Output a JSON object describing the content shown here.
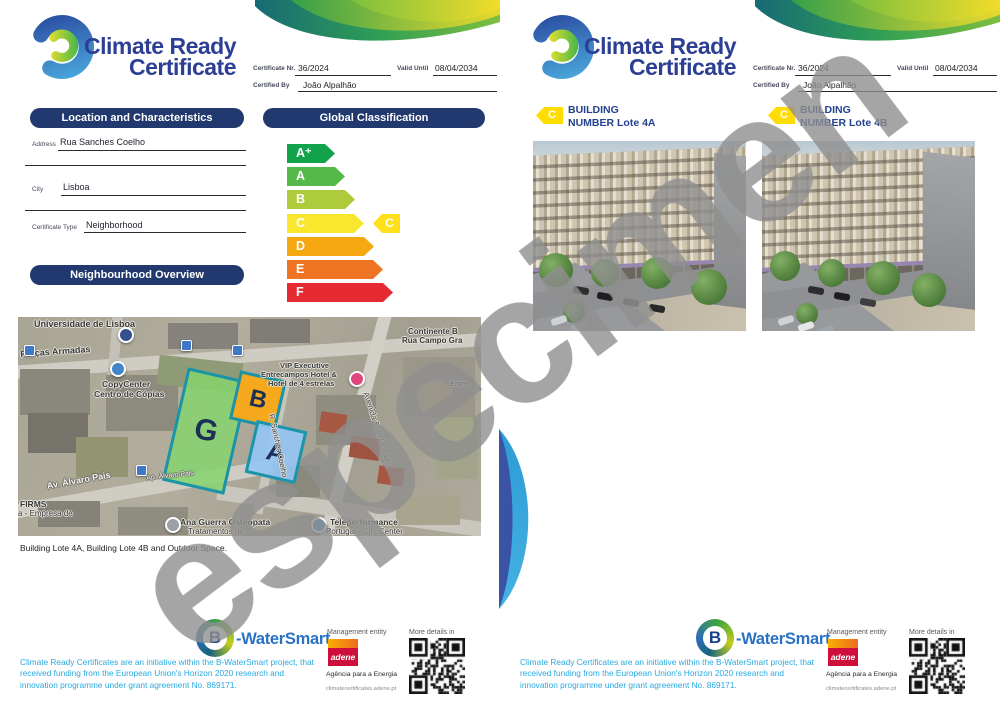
{
  "watermark": "especimen",
  "logo": {
    "title_line1": "Climate Ready",
    "title_line2": "Certificate"
  },
  "header": {
    "certificate_nr_label": "Certificate Nr.",
    "certificate_nr": "36/2024",
    "valid_until_label": "Valid Until",
    "valid_until": "08/04/2034",
    "certified_by_label": "Certified By",
    "certified_by": "João Alpalhão"
  },
  "left_page": {
    "location_section_title": "Location and Characteristics",
    "classification_section_title": "Global Classification",
    "overview_section_title": "Neighbourhood Overview",
    "fields": {
      "address_label": "Address",
      "address": "Rua Sanches Coelho",
      "city_label": "City",
      "city": "Lisboa",
      "certificate_type_label": "Certificate Type",
      "certificate_type": "Neighborhood"
    },
    "map_caption": "Building Lote 4A, Building Lote 4B and Outdoor Space."
  },
  "energy_scale": {
    "bands": [
      {
        "letter": "A⁺",
        "color": "#12a24b"
      },
      {
        "letter": "A",
        "color": "#54b948"
      },
      {
        "letter": "B",
        "color": "#aecb3b"
      },
      {
        "letter": "C",
        "color": "#f9e72e"
      },
      {
        "letter": "D",
        "color": "#f6a810"
      },
      {
        "letter": "E",
        "color": "#ee7423"
      },
      {
        "letter": "F",
        "color": "#e62a32"
      }
    ],
    "rating": {
      "letter": "C",
      "color": "#ffe01a",
      "row": 3
    }
  },
  "map": {
    "zones": [
      {
        "letter": "G",
        "fill": "rgba(134,211,110,0.85)"
      },
      {
        "letter": "B",
        "fill": "#f6a91d"
      },
      {
        "letter": "A",
        "fill": "rgba(147,197,245,0.9)"
      }
    ],
    "labels": [
      {
        "text": "Universidade de Lisboa"
      },
      {
        "text": "Forças Armadas"
      },
      {
        "text": "CopyCenter"
      },
      {
        "text": "Centro de Cópias"
      },
      {
        "text": "VIP Executive"
      },
      {
        "text": "Entrecampos Hotel &"
      },
      {
        "text": "Hotel de 4 estrelas"
      },
      {
        "text": "Continente B"
      },
      {
        "text": "Rua Campo Gra"
      },
      {
        "text": "Avenida 5 de Outubro"
      },
      {
        "text": "R. Sanches Coelho"
      },
      {
        "text": "Av. Álvaro Pais"
      },
      {
        "text": "Ap. Álvaro Pais"
      },
      {
        "text": "FIRMS"
      },
      {
        "text": "a - Empresa de"
      },
      {
        "text": "Ana Guerra Osteopata"
      },
      {
        "text": "Tratamentos de"
      },
      {
        "text": "Teleperformance"
      },
      {
        "text": "Portugal - City Center"
      },
      {
        "text": "Entre"
      }
    ],
    "pins": [
      {
        "type": "copyshop-pin-blue",
        "color": "#4285c8"
      },
      {
        "type": "school-pin-navy",
        "color": "#35508c"
      },
      {
        "type": "hotel-pin-pink",
        "color": "#e0457b"
      },
      {
        "type": "poi-pin-blue",
        "color": "#4285c8"
      },
      {
        "type": "health-pin-gray",
        "color": "#9aa0a6"
      },
      {
        "type": "transit-icon",
        "color": "#3e78c9"
      },
      {
        "type": "transit-icon",
        "color": "#3e78c9"
      },
      {
        "type": "transit-icon",
        "color": "#3e78c9"
      },
      {
        "type": "transit-icon",
        "color": "#3e78c9"
      }
    ]
  },
  "right_page": {
    "buildings": [
      {
        "tag": "C",
        "line1": "BUILDING",
        "line2": "NUMBER Lote 4A"
      },
      {
        "tag": "C",
        "line1": "BUILDING",
        "line2": "NUMBER Lote 4B"
      }
    ]
  },
  "footer": {
    "bwatersmart_b": "B",
    "bwatersmart_text": "-WaterSmart",
    "disclaimer": "Climate Ready Certificates are an initiative within the B-WaterSmart project, that received funding from the European Union's Horizon 2020 research and innovation programme under grant agreement No. 869171.",
    "management_entity_label": "Management entity",
    "adene_name": "adene",
    "adene_sub": "Agência para a Energia",
    "adene_url": "climatecertificates.adene.pt",
    "more_details_label": "More details in"
  },
  "colors": {
    "navy_pill": "#21396e",
    "title_navy": "#2d3f94",
    "disclaimer_blue": "#27a9e1",
    "zone_border_teal": "#1b93a8",
    "rating_yellow": "#ffe01a"
  }
}
